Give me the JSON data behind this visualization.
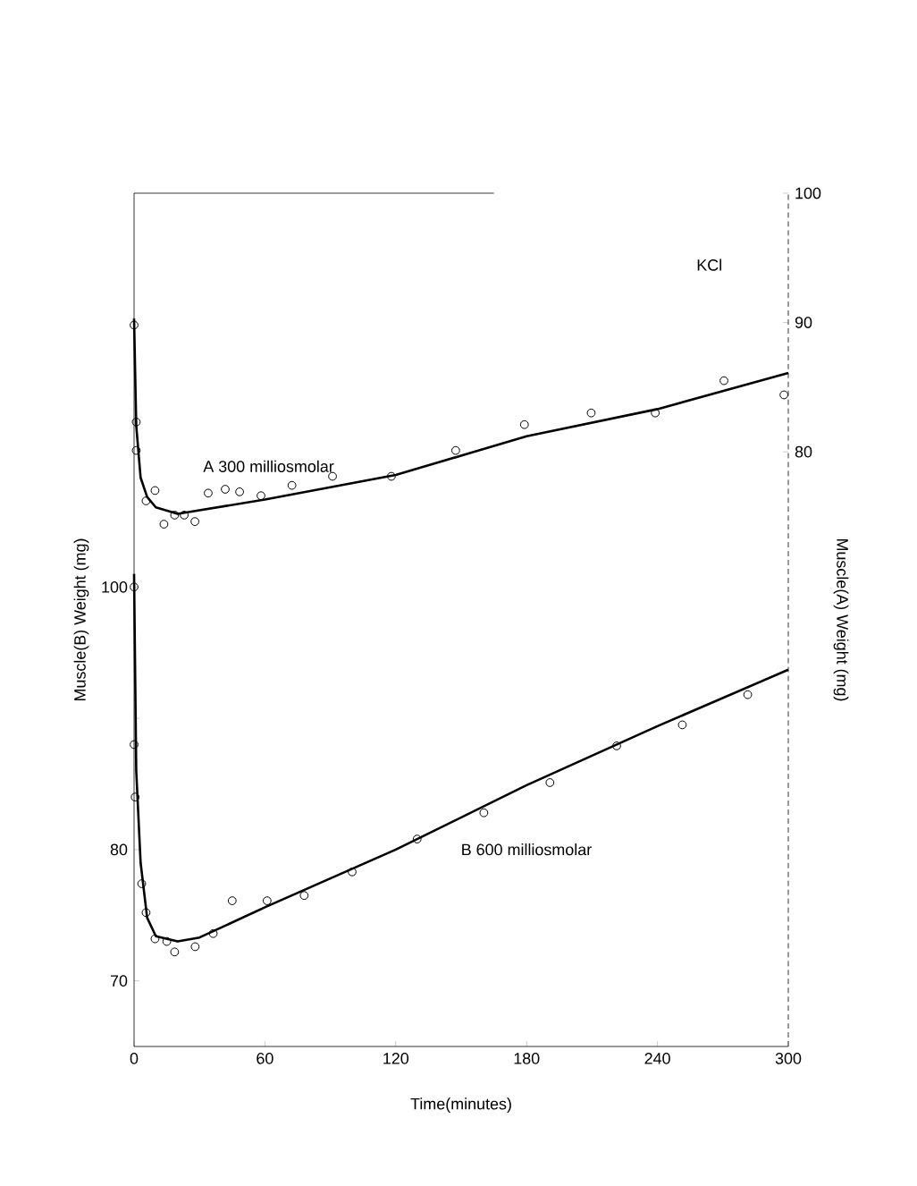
{
  "chart_data": {
    "type": "line",
    "xlabel": "Time(minutes)",
    "ylabel": "Muscle(B) Weight (mg)",
    "y2label": "Muscle(A) Weight (mg)",
    "annotations": [
      "KCl"
    ],
    "xlim": [
      0,
      300
    ],
    "xticks": [
      0,
      60,
      120,
      180,
      240,
      300
    ],
    "ylim": [
      65,
      130
    ],
    "yticks": [
      70,
      80,
      {
        "value": 90,
        "label": null
      },
      100
    ],
    "y2lim": [
      34,
      100
    ],
    "y2ticks": [
      80,
      90,
      100
    ],
    "grid": false,
    "series": [
      {
        "type": "scatter",
        "axis": "y2",
        "color": "#000000",
        "marker": "circle",
        "x": [
          0,
          1,
          1,
          5.5,
          9.6,
          13.7,
          18.6,
          23,
          27.9,
          34,
          41.8,
          48.4,
          58.2,
          72.4,
          91,
          118,
          147.5,
          179,
          209.6,
          239,
          270.5,
          298
        ],
        "values": [
          89.8,
          82.3,
          80.1,
          76.2,
          77.0,
          74.4,
          75.1,
          75.1,
          74.6,
          76.8,
          77.1,
          76.9,
          76.6,
          77.4,
          78.1,
          78.1,
          80.1,
          82.1,
          83.0,
          83.0,
          85.5,
          84.4
        ]
      },
      {
        "axis": "y2",
        "name": "A 300 milliosmolar",
        "color": "#000000",
        "marker": "none",
        "line_style": "solid",
        "x": [
          0,
          1,
          3,
          6,
          10,
          20,
          60,
          120,
          180,
          240,
          300
        ],
        "values": [
          90.3,
          82,
          78,
          76.5,
          75.7,
          75.2,
          76.3,
          78.2,
          81.2,
          83.3,
          86.1
        ]
      },
      {
        "type": "scatter",
        "axis": "y",
        "color": "#000000",
        "marker": "circle",
        "x": [
          0,
          0,
          0.5,
          3.5,
          5.5,
          9.6,
          15,
          18.6,
          28,
          36.3,
          45,
          61,
          78,
          100,
          129.8,
          160.4,
          190.7,
          221.3,
          251.4,
          281.4
        ],
        "values": [
          100,
          88.0,
          84.0,
          77.4,
          75.2,
          73.2,
          73.0,
          72.2,
          72.6,
          73.6,
          76.1,
          76.1,
          76.5,
          78.3,
          80.8,
          82.8,
          85.1,
          87.9,
          89.5,
          91.8
        ]
      },
      {
        "axis": "y",
        "name": "B 600 milliosmolar",
        "color": "#000000",
        "marker": "none",
        "line_style": "solid",
        "x": [
          0,
          1,
          3,
          6,
          10,
          20,
          30,
          60,
          120,
          180,
          240,
          300
        ],
        "values": [
          101,
          86,
          79,
          74.8,
          73.4,
          73.0,
          73.3,
          75.6,
          80.0,
          84.9,
          89.4,
          93.7
        ]
      }
    ]
  }
}
